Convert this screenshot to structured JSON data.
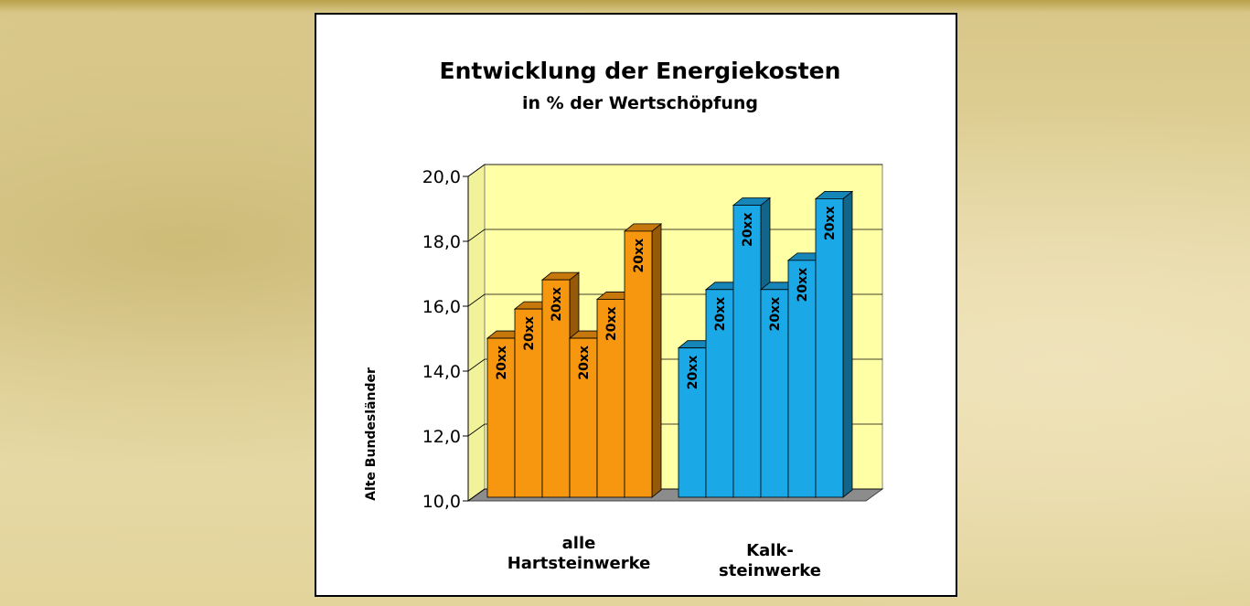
{
  "chart_data": {
    "type": "bar3d",
    "title": "Entwicklung der Energiekosten",
    "subtitle": "in % der Wertschöpfung",
    "y_label": "Alte Bundesländer",
    "categories": [
      [
        "alle",
        "Hartsteinwerke"
      ],
      [
        "Kalk-",
        "steinwerke"
      ]
    ],
    "category_colors": [
      "#f7960f",
      "#1ba8e6"
    ],
    "series": [
      {
        "name": "20xx",
        "values": [
          14.9,
          14.6
        ]
      },
      {
        "name": "20xx",
        "values": [
          15.8,
          16.4
        ]
      },
      {
        "name": "20xx",
        "values": [
          16.7,
          19.0
        ]
      },
      {
        "name": "20xx",
        "values": [
          14.9,
          16.4
        ]
      },
      {
        "name": "20xx",
        "values": [
          16.1,
          17.3
        ]
      },
      {
        "name": "20xx",
        "values": [
          18.2,
          19.2
        ]
      }
    ],
    "ylim": [
      10,
      20
    ],
    "yticks": [
      {
        "value": 10,
        "label": "10,0"
      },
      {
        "value": 12,
        "label": "12,0"
      },
      {
        "value": 14,
        "label": "14,0"
      },
      {
        "value": 16,
        "label": "16,0"
      },
      {
        "value": 18,
        "label": "18,0"
      },
      {
        "value": 20,
        "label": "20,0"
      }
    ],
    "grid": true
  }
}
